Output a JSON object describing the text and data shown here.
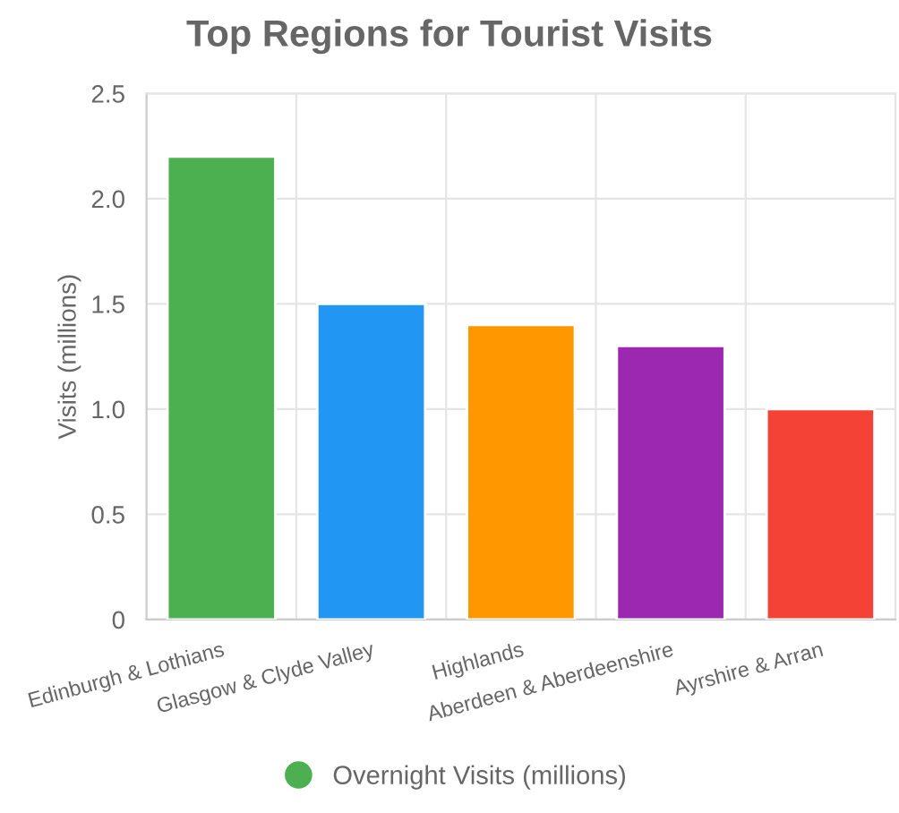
{
  "chart_data": {
    "type": "bar",
    "title": "Top Regions for Tourist Visits",
    "ylabel": "Visits (millions)",
    "categories": [
      "Edinburgh & Lothians",
      "Glasgow & Clyde Valley",
      "Highlands",
      "Aberdeen & Aberdeenshire",
      "Ayrshire & Arran"
    ],
    "series": [
      {
        "name": "Overnight Visits (millions)",
        "color": "#4caf50",
        "colors": [
          "#4caf50",
          "#2196f3",
          "#ff9800",
          "#9c27b0",
          "#f44336"
        ],
        "values": [
          2.2,
          1.5,
          1.4,
          1.3,
          1.0
        ]
      }
    ],
    "ylim": [
      0,
      2.5
    ],
    "yticks": [
      0,
      0.5,
      {
        "value": 1,
        "label": "1.0"
      },
      1.5,
      {
        "value": 2,
        "label": "2.0"
      },
      2.5
    ],
    "grid": true,
    "legend": "bottom",
    "marker": "circle"
  }
}
